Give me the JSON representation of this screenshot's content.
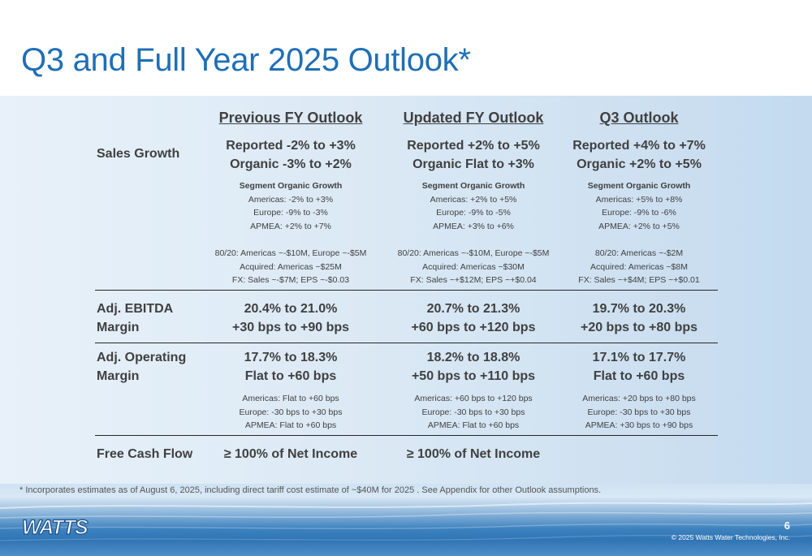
{
  "title": "Q3 and Full Year 2025 Outlook*",
  "columns": [
    "Previous FY Outlook",
    "Updated FY Outlook",
    "Q3 Outlook"
  ],
  "rows": {
    "sales_growth": {
      "label": "Sales Growth",
      "cells": [
        {
          "reported": "Reported -2% to +3%",
          "organic": "Organic -3% to +2%",
          "segment_heading": "Segment Organic Growth",
          "segment_lines": [
            "Americas: -2% to +3%",
            "Europe: -9% to -3%",
            "APMEA: +2% to +7%"
          ],
          "detail_lines": [
            "80/20: Americas ~-$10M, Europe ~-$5M",
            "Acquired: Americas ~$25M",
            "FX: Sales ~-$7M; EPS ~-$0.03"
          ]
        },
        {
          "reported": "Reported +2% to +5%",
          "organic": "Organic Flat to +3%",
          "segment_heading": "Segment Organic Growth",
          "segment_lines": [
            "Americas: +2% to +5%",
            "Europe: -9% to -5%",
            "APMEA: +3% to +6%"
          ],
          "detail_lines": [
            "80/20: Americas ~-$10M, Europe ~-$5M",
            "Acquired: Americas ~$30M",
            "FX: Sales ~+$12M; EPS ~+$0.04"
          ]
        },
        {
          "reported": "Reported +4% to +7%",
          "organic": "Organic +2% to +5%",
          "segment_heading": "Segment Organic Growth",
          "segment_lines": [
            "Americas: +5% to +8%",
            "Europe: -9% to -6%",
            "APMEA: +2% to +5%"
          ],
          "detail_lines": [
            "80/20: Americas ~-$2M",
            "Acquired: Americas ~$8M",
            "FX: Sales ~+$4M; EPS ~+$0.01"
          ]
        }
      ]
    },
    "adj_ebitda": {
      "label_line1": "Adj. EBITDA",
      "label_line2": "Margin",
      "cells": [
        {
          "line1": "20.4% to 21.0%",
          "line2": "+30 bps to +90 bps"
        },
        {
          "line1": "20.7% to 21.3%",
          "line2": "+60 bps to +120 bps"
        },
        {
          "line1": "19.7% to 20.3%",
          "line2": "+20 bps to +80 bps"
        }
      ]
    },
    "adj_operating": {
      "label_line1": "Adj. Operating",
      "label_line2": "Margin",
      "cells": [
        {
          "line1": "17.7% to 18.3%",
          "line2": "Flat to +60 bps",
          "segment_lines": [
            "Americas: Flat to +60 bps",
            "Europe: -30 bps to +30 bps",
            "APMEA: Flat to +60 bps"
          ]
        },
        {
          "line1": "18.2% to 18.8%",
          "line2": "+50 bps to +110 bps",
          "segment_lines": [
            "Americas: +60 bps to +120 bps",
            "Europe: -30 bps to +30 bps",
            "APMEA: Flat to +60 bps"
          ]
        },
        {
          "line1": "17.1% to 17.7%",
          "line2": "Flat to +60 bps",
          "segment_lines": [
            "Americas: +20 bps to +80 bps",
            "Europe: -30 bps to +30 bps",
            "APMEA: +30 bps to +90 bps"
          ]
        }
      ]
    },
    "free_cash_flow": {
      "label": "Free Cash Flow",
      "cells": [
        "≥ 100% of Net Income",
        "≥ 100% of Net Income"
      ]
    }
  },
  "footnote": "* Incorporates estimates as of August 6, 2025, including direct tariff cost estimate of ~$40M for 2025 . See Appendix for other Outlook assumptions.",
  "logo_text": "WATTS",
  "page_number": "6",
  "copyright": "© 2025 Watts Water Technologies, Inc.",
  "colors": {
    "title": "#1f6fb6",
    "panel": "#dbe9f5",
    "text": "#404040",
    "wave": "#2f74b4"
  }
}
